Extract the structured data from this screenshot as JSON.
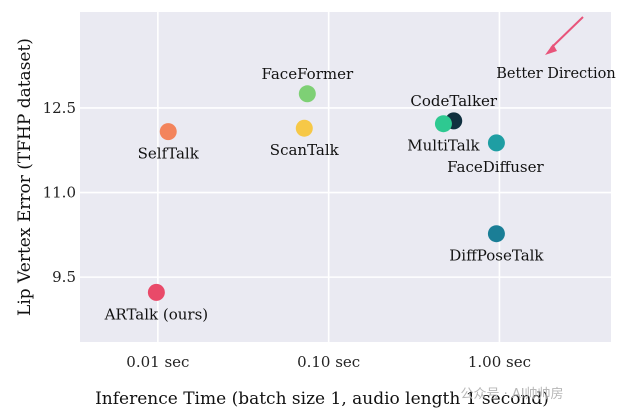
{
  "chart_data": {
    "type": "scatter",
    "title": "",
    "xlabel": "Inference Time (batch size 1, audio length 1 second)",
    "ylabel": "Lip Vertex Error (TFHP dataset)",
    "xscale": "log",
    "xlim": [
      0.0035,
      4.5
    ],
    "ylim": [
      8.35,
      14.2
    ],
    "xticks": [
      {
        "value": 0.01,
        "label": "0.01 sec"
      },
      {
        "value": 0.1,
        "label": "0.10 sec"
      },
      {
        "value": 1.0,
        "label": "1.00 sec"
      }
    ],
    "yticks": [
      {
        "value": 9.5,
        "label": "9.5"
      },
      {
        "value": 11.0,
        "label": "11.0"
      },
      {
        "value": 12.5,
        "label": "12.5"
      }
    ],
    "grid": true,
    "series": [
      {
        "name": "FaceFormer",
        "x": 0.075,
        "y": 12.75,
        "color": "#7ed075",
        "label_pos": "above"
      },
      {
        "name": "ScanTalk",
        "x": 0.072,
        "y": 12.14,
        "color": "#f6c847",
        "label_pos": "below"
      },
      {
        "name": "SelfTalk",
        "x": 0.0115,
        "y": 12.08,
        "color": "#f3845c",
        "label_pos": "below"
      },
      {
        "name": "CodeTalker",
        "x": 0.54,
        "y": 12.27,
        "color": "#10303f",
        "label_pos": "above"
      },
      {
        "name": "MultiTalk",
        "x": 0.47,
        "y": 12.22,
        "color": "#2ec991",
        "label_pos": "below"
      },
      {
        "name": "FaceDiffuser",
        "x": 0.96,
        "y": 11.88,
        "color": "#1f9ea3",
        "label_pos": "below-right"
      },
      {
        "name": "DiffPoseTalk",
        "x": 0.96,
        "y": 10.27,
        "color": "#1a7e96",
        "label_pos": "below"
      },
      {
        "name": "ARTalk (ours)",
        "x": 0.0098,
        "y": 9.23,
        "color": "#e94a69",
        "label_pos": "below"
      }
    ],
    "annotations": [
      {
        "text": "Better Direction",
        "arrow_color": "#e8547a"
      }
    ],
    "watermark": "公众号 · AI帅帅房"
  }
}
